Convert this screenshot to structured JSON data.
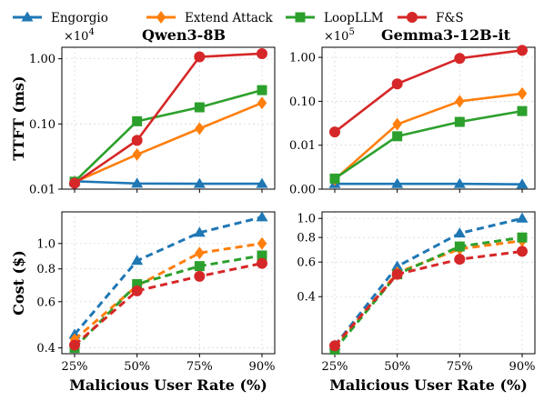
{
  "legend": [
    {
      "name": "Engorgio",
      "color": "#1f77b4",
      "marker": "triangle"
    },
    {
      "name": "Extend Attack",
      "color": "#ff7f0e",
      "marker": "diamond"
    },
    {
      "name": "LoopLLM",
      "color": "#2ca02c",
      "marker": "square"
    },
    {
      "name": "F&S",
      "color": "#d62728",
      "marker": "circle"
    }
  ],
  "chart_data": [
    {
      "type": "line",
      "title": "Qwen3-8B",
      "ylabel": "TTFT (ms)",
      "xlabel": "",
      "y_multiplier": "×10",
      "y_multiplier_exp": "4",
      "yscale": "log",
      "ylim": [
        0.01,
        1.5
      ],
      "yticks": [
        0.01,
        0.1,
        1.0
      ],
      "ytick_labels": [
        "0.01",
        "0.10",
        "1.00"
      ],
      "grid": true,
      "categories": [
        "25%",
        "50%",
        "75%",
        "90%"
      ],
      "series": [
        {
          "name": "Engorgio",
          "values": [
            0.0132,
            0.0122,
            0.0121,
            0.0121
          ]
        },
        {
          "name": "Extend Attack",
          "values": [
            0.0128,
            0.034,
            0.085,
            0.21
          ]
        },
        {
          "name": "LoopLLM",
          "values": [
            0.013,
            0.11,
            0.18,
            0.33
          ]
        },
        {
          "name": "F&S",
          "values": [
            0.0123,
            0.056,
            1.07,
            1.2
          ]
        }
      ]
    },
    {
      "type": "line",
      "title": "Gemma3-12B-it",
      "ylabel": "",
      "xlabel": "",
      "y_multiplier": "×10",
      "y_multiplier_exp": "5",
      "yscale": "symlog",
      "ylim": [
        0,
        1.7
      ],
      "yticks": [
        0,
        0.01,
        0.1,
        1.0
      ],
      "ytick_labels": [
        "0.00",
        "0.01",
        "0.10",
        "1.00"
      ],
      "grid": true,
      "categories": [
        "25%",
        "50%",
        "75%",
        "90%"
      ],
      "series": [
        {
          "name": "Engorgio",
          "values": [
            0.0012,
            0.0012,
            0.0012,
            0.0011
          ]
        },
        {
          "name": "Extend Attack",
          "values": [
            0.0022,
            0.03,
            0.1,
            0.15
          ]
        },
        {
          "name": "LoopLLM",
          "values": [
            0.0024,
            0.016,
            0.034,
            0.06
          ]
        },
        {
          "name": "F&S",
          "values": [
            0.02,
            0.25,
            0.95,
            1.45
          ]
        }
      ]
    },
    {
      "type": "line",
      "title": "",
      "ylabel": "Cost ($)",
      "xlabel": "Malicious User Rate (%)",
      "yscale": "log",
      "ylim": [
        0.38,
        1.32
      ],
      "yticks": [
        0.4,
        0.6,
        0.8,
        1.0
      ],
      "ytick_labels": [
        "0.4",
        "0.6",
        "0.8",
        "1.0"
      ],
      "grid": true,
      "categories": [
        "25%",
        "50%",
        "75%",
        "90%"
      ],
      "series": [
        {
          "name": "Engorgio",
          "values": [
            0.45,
            0.86,
            1.1,
            1.26
          ]
        },
        {
          "name": "Extend Attack",
          "values": [
            0.43,
            0.69,
            0.92,
            1.0
          ]
        },
        {
          "name": "LoopLLM",
          "values": [
            0.4,
            0.7,
            0.82,
            0.9
          ]
        },
        {
          "name": "F&S",
          "values": [
            0.41,
            0.66,
            0.75,
            0.84
          ]
        }
      ]
    },
    {
      "type": "line",
      "title": "",
      "ylabel": "",
      "xlabel": "Malicious User Rate (%)",
      "yscale": "log",
      "ylim": [
        0.205,
        1.08
      ],
      "yticks": [
        0.4,
        0.6,
        0.8,
        1.0
      ],
      "ytick_labels": [
        "0.4",
        "0.6",
        "0.8",
        "1.0"
      ],
      "grid": true,
      "categories": [
        "25%",
        "50%",
        "75%",
        "90%"
      ],
      "series": [
        {
          "name": "Engorgio",
          "values": [
            0.225,
            0.57,
            0.84,
            1.0
          ]
        },
        {
          "name": "Extend Attack",
          "values": [
            0.22,
            0.53,
            0.7,
            0.77
          ]
        },
        {
          "name": "LoopLLM",
          "values": [
            0.215,
            0.52,
            0.72,
            0.8
          ]
        },
        {
          "name": "F&S",
          "values": [
            0.225,
            0.52,
            0.62,
            0.68
          ]
        }
      ]
    }
  ]
}
